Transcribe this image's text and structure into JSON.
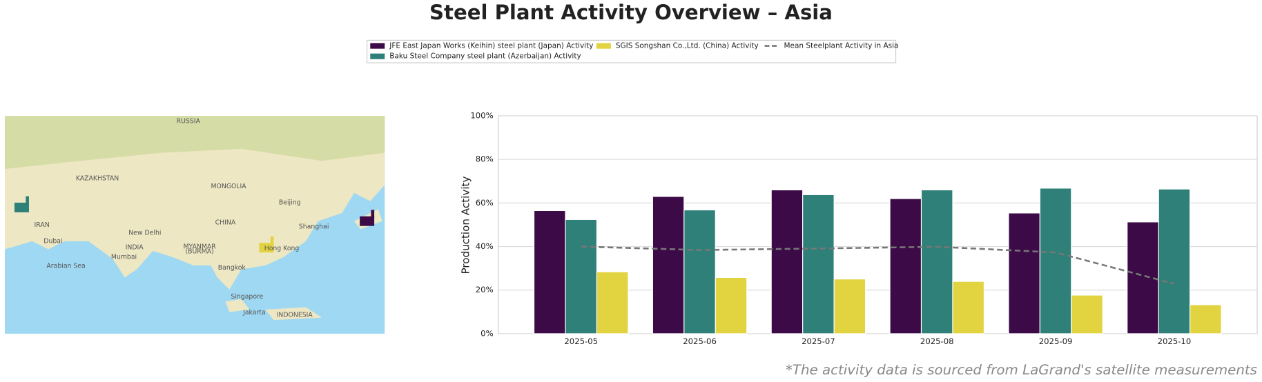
{
  "chart_data": {
    "type": "bar",
    "title": "Steel Plant Activity Overview – Asia",
    "ylabel": "Production Activity",
    "categories": [
      "2025-05",
      "2025-06",
      "2025-07",
      "2025-08",
      "2025-09",
      "2025-10"
    ],
    "series": [
      {
        "name": "JFE East Japan Works (Keihin) steel plant (Japan) Activity",
        "color": "#3c0b47",
        "values": [
          56.5,
          63,
          66,
          62,
          55.4,
          51.3
        ]
      },
      {
        "name": "Baku Steel Company steel plant (Azerbaijan) Activity",
        "color": "#2e8078",
        "values": [
          52.4,
          56.8,
          63.8,
          66,
          66.8,
          66.4
        ]
      },
      {
        "name": "SGIS Songshan Co.,Ltd. (China) Activity",
        "color": "#e2d340",
        "values": [
          28.4,
          25.8,
          25.1,
          24,
          17.7,
          13.3
        ]
      },
      {
        "name": "Mean Steelplant Activity in Asia",
        "color": "#777777",
        "style": "dashed",
        "values": [
          40,
          38.4,
          39.1,
          39.9,
          37.3,
          22.9
        ]
      }
    ],
    "ylim": [
      0,
      100
    ],
    "yticks": [
      {
        "value": 0,
        "label": "0%"
      },
      {
        "value": 20,
        "label": "20%"
      },
      {
        "value": 40,
        "label": "40%"
      },
      {
        "value": 60,
        "label": "60%"
      },
      {
        "value": 80,
        "label": "80%"
      },
      {
        "value": 100,
        "label": "100%"
      }
    ],
    "grid": true,
    "annotation": "*The activity data is sourced from LaGrand's satellite measurements"
  },
  "map": {
    "labels": [
      "RUSSIA",
      "KAZAKHSTAN",
      "MONGOLIA",
      "CHINA",
      "Beijing",
      "Shanghai",
      "IRAN",
      "New Delhi",
      "INDIA",
      "MYANMAR",
      "(BURMA)",
      "Hong Kong",
      "Dubai",
      "Mumbai",
      "Arabian Sea",
      "Bangkok",
      "Singapore",
      "Jakarta",
      "INDONESIA"
    ]
  }
}
